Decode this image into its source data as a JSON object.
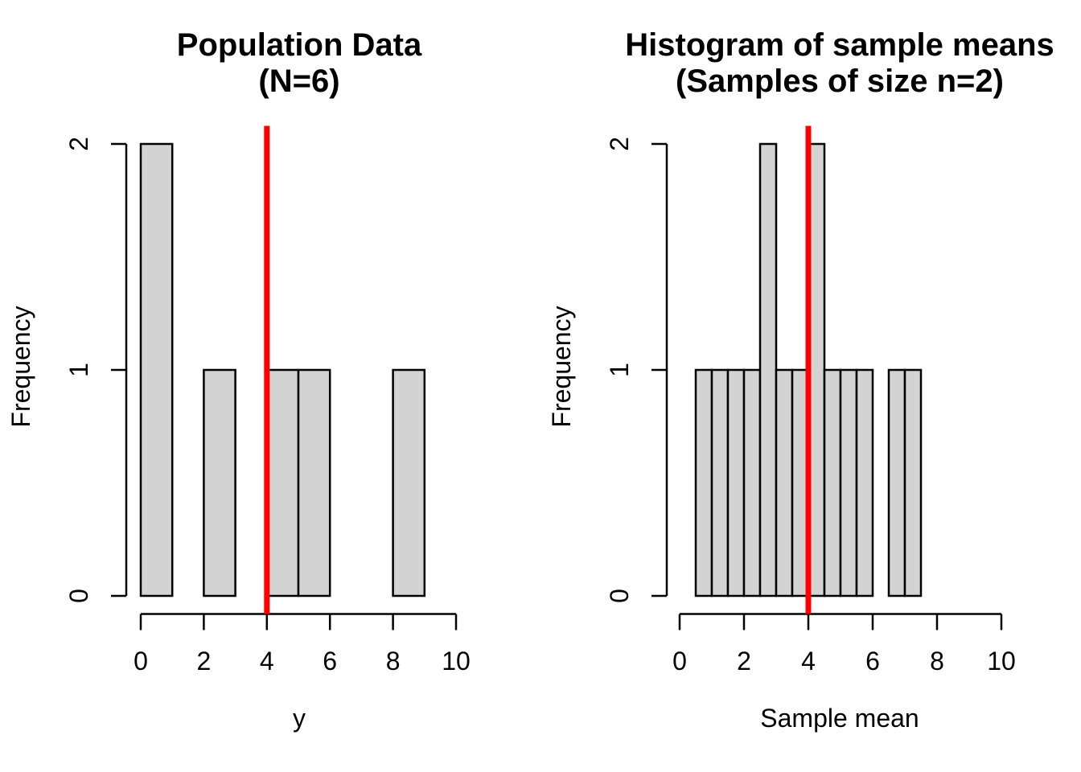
{
  "figure": {
    "background": "#FFFFFF",
    "bar_fill": "#D3D3D3",
    "bar_border": "#000000",
    "axis_color": "#000000",
    "mean_line_color": "#FF0000"
  },
  "chart_data": [
    {
      "type": "bar",
      "title_line1": "Population Data",
      "title_line2": "(N=6)",
      "xlabel": "y",
      "ylabel": "Frequency",
      "xlim": [
        0,
        10
      ],
      "ylim": [
        0,
        2
      ],
      "x_ticks": [
        0,
        2,
        4,
        6,
        8,
        10
      ],
      "y_ticks": [
        0,
        1,
        2
      ],
      "bin_width": 1,
      "bins": [
        {
          "x0": 0,
          "x1": 1,
          "count": 2
        },
        {
          "x0": 1,
          "x1": 2,
          "count": 0
        },
        {
          "x0": 2,
          "x1": 3,
          "count": 1
        },
        {
          "x0": 3,
          "x1": 4,
          "count": 0
        },
        {
          "x0": 4,
          "x1": 5,
          "count": 1
        },
        {
          "x0": 5,
          "x1": 6,
          "count": 1
        },
        {
          "x0": 6,
          "x1": 7,
          "count": 0
        },
        {
          "x0": 7,
          "x1": 8,
          "count": 0
        },
        {
          "x0": 8,
          "x1": 9,
          "count": 1
        }
      ],
      "mean_line_x": 4,
      "grid": false,
      "legend": false
    },
    {
      "type": "bar",
      "title_line1": "Histogram of sample means",
      "title_line2": "(Samples of size n=2)",
      "xlabel": "Sample mean",
      "ylabel": "Frequency",
      "xlim": [
        0,
        10
      ],
      "ylim": [
        0,
        2
      ],
      "x_ticks": [
        0,
        2,
        4,
        6,
        8,
        10
      ],
      "y_ticks": [
        0,
        1,
        2
      ],
      "bin_width": 0.5,
      "bins": [
        {
          "x0": 0.5,
          "x1": 1.0,
          "count": 1
        },
        {
          "x0": 1.0,
          "x1": 1.5,
          "count": 1
        },
        {
          "x0": 1.5,
          "x1": 2.0,
          "count": 1
        },
        {
          "x0": 2.0,
          "x1": 2.5,
          "count": 1
        },
        {
          "x0": 2.5,
          "x1": 3.0,
          "count": 2
        },
        {
          "x0": 3.0,
          "x1": 3.5,
          "count": 1
        },
        {
          "x0": 3.5,
          "x1": 4.0,
          "count": 1
        },
        {
          "x0": 4.0,
          "x1": 4.5,
          "count": 2
        },
        {
          "x0": 4.5,
          "x1": 5.0,
          "count": 1
        },
        {
          "x0": 5.0,
          "x1": 5.5,
          "count": 1
        },
        {
          "x0": 5.5,
          "x1": 6.0,
          "count": 1
        },
        {
          "x0": 6.0,
          "x1": 6.5,
          "count": 0
        },
        {
          "x0": 6.5,
          "x1": 7.0,
          "count": 1
        },
        {
          "x0": 7.0,
          "x1": 7.5,
          "count": 1
        }
      ],
      "mean_line_x": 4,
      "grid": false,
      "legend": false
    }
  ]
}
